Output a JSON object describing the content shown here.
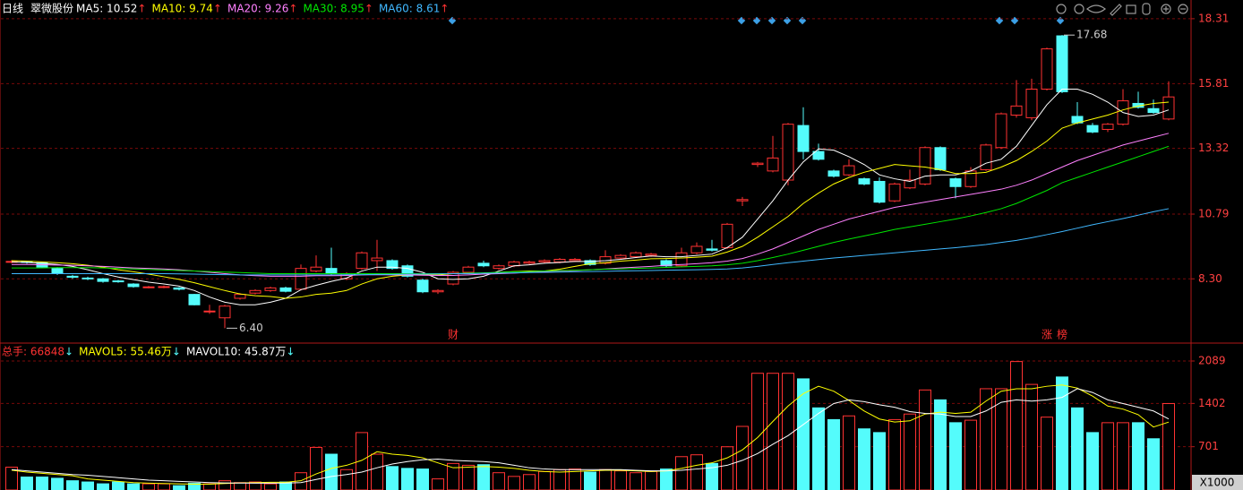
{
  "header": {
    "period": "日线",
    "stock": "翠微股份"
  },
  "chart_data": [
    {
      "type": "candlestick",
      "open": [
        8.95,
        8.97,
        8.92,
        8.7,
        8.4,
        8.33,
        8.3,
        8.22,
        8.1,
        7.96,
        7.98,
        7.95,
        7.7,
        7.05,
        6.8,
        7.55,
        7.75,
        7.85,
        7.95,
        7.9,
        8.6,
        8.7,
        8.3,
        8.7,
        9.0,
        9.0,
        8.8,
        8.25,
        7.8,
        8.1,
        8.55,
        8.9,
        8.7,
        8.8,
        8.9,
        8.95,
        8.95,
        9.0,
        9.0,
        8.9,
        9.1,
        9.15,
        9.2,
        9.0,
        8.8,
        9.3,
        9.45,
        9.5,
        11.3,
        12.7,
        12.45,
        12.1,
        14.2,
        13.2,
        12.45,
        12.3,
        12.15,
        12.05,
        11.3,
        11.8,
        11.95,
        13.35,
        12.15,
        11.85,
        12.5,
        13.35,
        14.6,
        14.5,
        15.6,
        17.65,
        14.55,
        14.2,
        14.05,
        14.25,
        15.05,
        14.85,
        14.45
      ],
      "high": [
        9.02,
        9.0,
        8.95,
        8.75,
        8.45,
        8.38,
        8.33,
        8.26,
        8.13,
        8.03,
        8.04,
        7.98,
        7.72,
        7.3,
        7.3,
        7.75,
        7.9,
        8.0,
        8.0,
        8.85,
        9.2,
        9.5,
        8.55,
        9.35,
        9.8,
        9.05,
        8.85,
        8.3,
        7.9,
        8.6,
        8.8,
        9.0,
        8.85,
        9.0,
        9.0,
        9.05,
        9.1,
        9.1,
        9.05,
        9.4,
        9.25,
        9.35,
        9.3,
        9.05,
        9.5,
        9.7,
        9.8,
        10.45,
        11.45,
        12.8,
        13.8,
        14.3,
        14.9,
        13.5,
        12.5,
        12.9,
        12.2,
        12.2,
        12.0,
        12.5,
        13.4,
        13.4,
        12.2,
        12.6,
        13.5,
        14.7,
        15.95,
        16.0,
        17.2,
        17.68,
        15.1,
        14.3,
        14.3,
        15.6,
        15.5,
        15.2,
        15.9
      ],
      "low": [
        8.9,
        8.88,
        8.72,
        8.45,
        8.3,
        8.25,
        8.15,
        8.15,
        7.96,
        7.93,
        7.94,
        7.85,
        7.28,
        6.95,
        6.4,
        7.5,
        7.7,
        7.8,
        7.78,
        7.85,
        8.55,
        8.45,
        8.25,
        8.65,
        8.6,
        8.65,
        8.35,
        7.75,
        7.72,
        8.05,
        8.5,
        8.75,
        8.65,
        8.75,
        8.85,
        8.9,
        8.9,
        8.95,
        8.8,
        8.85,
        9.05,
        9.1,
        9.15,
        8.75,
        8.75,
        9.25,
        9.35,
        9.45,
        11.1,
        12.6,
        12.4,
        11.9,
        12.9,
        12.85,
        12.2,
        12.25,
        11.9,
        11.2,
        11.25,
        11.75,
        11.9,
        12.45,
        11.4,
        11.8,
        12.45,
        13.3,
        14.5,
        14.4,
        15.55,
        15.45,
        14.25,
        13.9,
        13.95,
        14.2,
        14.85,
        14.65,
        14.4
      ],
      "close": [
        8.97,
        8.93,
        8.75,
        8.5,
        8.36,
        8.3,
        8.2,
        8.2,
        8.0,
        7.99,
        8.0,
        7.9,
        7.3,
        7.06,
        7.25,
        7.7,
        7.85,
        7.95,
        7.82,
        8.7,
        8.75,
        8.5,
        8.5,
        9.3,
        9.1,
        8.7,
        8.4,
        7.8,
        7.85,
        8.55,
        8.75,
        8.8,
        8.8,
        8.95,
        8.95,
        9.0,
        9.05,
        9.05,
        8.85,
        9.15,
        9.2,
        9.3,
        9.25,
        8.8,
        9.3,
        9.55,
        9.4,
        10.4,
        11.35,
        12.75,
        12.95,
        14.25,
        13.2,
        12.9,
        12.25,
        12.65,
        11.95,
        11.25,
        11.95,
        12.1,
        13.35,
        12.5,
        11.85,
        12.45,
        13.45,
        14.65,
        14.95,
        15.6,
        17.15,
        15.5,
        14.3,
        13.95,
        14.25,
        15.15,
        14.9,
        14.7,
        15.3
      ],
      "up_color": "#ff3232",
      "down_color": "#54fcfc",
      "series": [
        {
          "name": "MA5: 10.52",
          "trend": "↑",
          "color": "#ffffff",
          "values": [
            8.95,
            8.93,
            8.9,
            8.85,
            8.78,
            8.65,
            8.5,
            8.37,
            8.27,
            8.17,
            8.1,
            8.02,
            7.85,
            7.6,
            7.4,
            7.3,
            7.3,
            7.4,
            7.55,
            7.88,
            8.05,
            8.2,
            8.33,
            8.6,
            8.75,
            8.75,
            8.7,
            8.55,
            8.3,
            8.28,
            8.3,
            8.4,
            8.6,
            8.8,
            8.84,
            8.9,
            8.93,
            8.97,
            8.97,
            9.0,
            9.05,
            9.12,
            9.18,
            9.15,
            9.15,
            9.2,
            9.25,
            9.5,
            9.9,
            10.6,
            11.3,
            12.1,
            12.8,
            13.3,
            13.25,
            13.0,
            12.7,
            12.3,
            12.15,
            12.05,
            12.25,
            12.3,
            12.3,
            12.45,
            12.75,
            12.9,
            13.4,
            14.2,
            15.0,
            15.6,
            15.6,
            15.4,
            15.1,
            14.7,
            14.55,
            14.6,
            14.8
          ]
        },
        {
          "name": "MA10: 9.74",
          "trend": "↑",
          "color": "#ffff00",
          "values": [
            9.0,
            8.98,
            8.95,
            8.92,
            8.88,
            8.82,
            8.75,
            8.65,
            8.57,
            8.48,
            8.38,
            8.28,
            8.15,
            8.0,
            7.85,
            7.72,
            7.65,
            7.62,
            7.55,
            7.6,
            7.7,
            7.75,
            7.85,
            8.1,
            8.3,
            8.4,
            8.45,
            8.45,
            8.45,
            8.5,
            8.5,
            8.52,
            8.55,
            8.58,
            8.6,
            8.6,
            8.67,
            8.78,
            8.88,
            8.92,
            8.98,
            9.02,
            9.07,
            9.08,
            9.1,
            9.13,
            9.17,
            9.33,
            9.55,
            9.9,
            10.3,
            10.7,
            11.2,
            11.6,
            11.95,
            12.2,
            12.4,
            12.55,
            12.7,
            12.65,
            12.6,
            12.5,
            12.35,
            12.35,
            12.4,
            12.6,
            12.85,
            13.2,
            13.6,
            14.1,
            14.3,
            14.45,
            14.6,
            14.8,
            14.95,
            15.05,
            15.1
          ]
        },
        {
          "name": "MA20: 9.26",
          "trend": "↑",
          "color": "#ff80ff",
          "values": [
            8.85,
            8.85,
            8.84,
            8.83,
            8.82,
            8.8,
            8.78,
            8.75,
            8.72,
            8.7,
            8.68,
            8.65,
            8.6,
            8.55,
            8.5,
            8.45,
            8.42,
            8.4,
            8.4,
            8.4,
            8.42,
            8.42,
            8.43,
            8.45,
            8.46,
            8.45,
            8.45,
            8.44,
            8.43,
            8.43,
            8.45,
            8.48,
            8.5,
            8.52,
            8.55,
            8.58,
            8.6,
            8.62,
            8.65,
            8.68,
            8.72,
            8.75,
            8.78,
            8.82,
            8.85,
            8.88,
            8.92,
            8.98,
            9.08,
            9.25,
            9.45,
            9.7,
            9.95,
            10.2,
            10.4,
            10.6,
            10.75,
            10.9,
            11.05,
            11.15,
            11.25,
            11.35,
            11.45,
            11.55,
            11.65,
            11.75,
            11.9,
            12.1,
            12.35,
            12.6,
            12.85,
            13.05,
            13.25,
            13.45,
            13.6,
            13.75,
            13.9
          ]
        },
        {
          "name": "MA30: 8.95",
          "trend": "↑",
          "color": "#00e600",
          "values": [
            8.72,
            8.72,
            8.72,
            8.73,
            8.73,
            8.73,
            8.72,
            8.7,
            8.68,
            8.66,
            8.64,
            8.62,
            8.6,
            8.58,
            8.56,
            8.54,
            8.52,
            8.5,
            8.5,
            8.5,
            8.5,
            8.5,
            8.5,
            8.5,
            8.5,
            8.5,
            8.5,
            8.5,
            8.5,
            8.5,
            8.52,
            8.53,
            8.55,
            8.57,
            8.58,
            8.6,
            8.62,
            8.63,
            8.65,
            8.67,
            8.68,
            8.7,
            8.72,
            8.74,
            8.76,
            8.78,
            8.8,
            8.84,
            8.9,
            9.0,
            9.12,
            9.25,
            9.4,
            9.55,
            9.7,
            9.83,
            9.95,
            10.07,
            10.2,
            10.3,
            10.4,
            10.5,
            10.6,
            10.72,
            10.85,
            11.0,
            11.2,
            11.45,
            11.7,
            12.0,
            12.2,
            12.4,
            12.6,
            12.8,
            13.0,
            13.2,
            13.4
          ]
        },
        {
          "name": "MA60: 8.61",
          "trend": "↑",
          "color": "#40b8ff",
          "values": [
            8.5,
            8.5,
            8.5,
            8.5,
            8.5,
            8.5,
            8.5,
            8.5,
            8.5,
            8.5,
            8.5,
            8.49,
            8.48,
            8.47,
            8.46,
            8.45,
            8.45,
            8.45,
            8.45,
            8.45,
            8.45,
            8.45,
            8.46,
            8.46,
            8.47,
            8.47,
            8.48,
            8.48,
            8.49,
            8.5,
            8.5,
            8.51,
            8.52,
            8.53,
            8.54,
            8.55,
            8.56,
            8.57,
            8.58,
            8.59,
            8.6,
            8.61,
            8.62,
            8.63,
            8.64,
            8.65,
            8.66,
            8.68,
            8.72,
            8.78,
            8.85,
            8.92,
            8.98,
            9.04,
            9.1,
            9.15,
            9.2,
            9.25,
            9.3,
            9.35,
            9.4,
            9.45,
            9.5,
            9.56,
            9.62,
            9.7,
            9.78,
            9.88,
            10.0,
            10.12,
            10.25,
            10.38,
            10.5,
            10.62,
            10.75,
            10.88,
            11.0
          ]
        }
      ],
      "ylim": [
        5.93,
        19.03
      ],
      "yticks": [
        18.31,
        15.81,
        13.32,
        10.79,
        {
          "value": 8.3,
          "label": "8.30"
        }
      ],
      "max_label": 17.68,
      "min_label": {
        "value": 6.4,
        "label": "6.40"
      },
      "annotations": [
        {
          "text": "财",
          "index": 29
        },
        {
          "text": "涨",
          "index": 68
        },
        {
          "text": "榜",
          "index": 69
        }
      ]
    },
    {
      "type": "bar",
      "title": "总手: 66848",
      "trend": "↓",
      "values": [
        370,
        210,
        210,
        190,
        150,
        130,
        100,
        130,
        100,
        100,
        100,
        70,
        110,
        100,
        150,
        120,
        130,
        100,
        130,
        280,
        690,
        580,
        330,
        930,
        580,
        380,
        350,
        340,
        180,
        430,
        400,
        410,
        280,
        220,
        250,
        300,
        330,
        340,
        290,
        330,
        310,
        280,
        300,
        340,
        540,
        570,
        430,
        700,
        1030,
        1890,
        1890,
        1890,
        1800,
        1330,
        1140,
        1200,
        990,
        930,
        1140,
        1230,
        1620,
        1460,
        1090,
        1130,
        1640,
        1640,
        2080,
        1710,
        1180,
        1830,
        1330,
        930,
        1090,
        1090,
        1090,
        830,
        1400
      ],
      "series": [
        {
          "name": "MAVOL5: 55.46万",
          "trend": "↓",
          "color": "#ffff00",
          "values": [
            320,
            290,
            270,
            250,
            230,
            180,
            160,
            140,
            120,
            110,
            105,
            100,
            95,
            95,
            105,
            115,
            120,
            125,
            125,
            150,
            260,
            350,
            400,
            480,
            620,
            580,
            560,
            520,
            440,
            360,
            370,
            380,
            370,
            350,
            320,
            300,
            290,
            300,
            310,
            320,
            320,
            310,
            300,
            310,
            350,
            400,
            440,
            520,
            650,
            850,
            1110,
            1360,
            1560,
            1680,
            1600,
            1450,
            1280,
            1150,
            1100,
            1120,
            1230,
            1260,
            1240,
            1260,
            1440,
            1600,
            1640,
            1640,
            1680,
            1700,
            1650,
            1520,
            1360,
            1310,
            1220,
            1020,
            1100
          ]
        },
        {
          "name": "MAVOL10: 45.87万",
          "trend": "↓",
          "color": "#ffffff",
          "values": [
            330,
            310,
            290,
            270,
            250,
            240,
            220,
            200,
            180,
            160,
            150,
            140,
            130,
            120,
            115,
            112,
            110,
            110,
            112,
            120,
            170,
            220,
            250,
            290,
            360,
            420,
            460,
            490,
            500,
            480,
            470,
            460,
            440,
            400,
            360,
            340,
            330,
            330,
            330,
            330,
            330,
            320,
            310,
            310,
            320,
            340,
            360,
            400,
            480,
            590,
            740,
            880,
            1060,
            1240,
            1400,
            1460,
            1430,
            1380,
            1340,
            1270,
            1240,
            1230,
            1190,
            1190,
            1280,
            1420,
            1460,
            1440,
            1460,
            1500,
            1640,
            1580,
            1460,
            1400,
            1340,
            1280,
            1150
          ]
        }
      ],
      "ylim": [
        0,
        2350
      ],
      "yticks": [
        701,
        1402,
        2089
      ],
      "unit_label": "X1000"
    }
  ]
}
